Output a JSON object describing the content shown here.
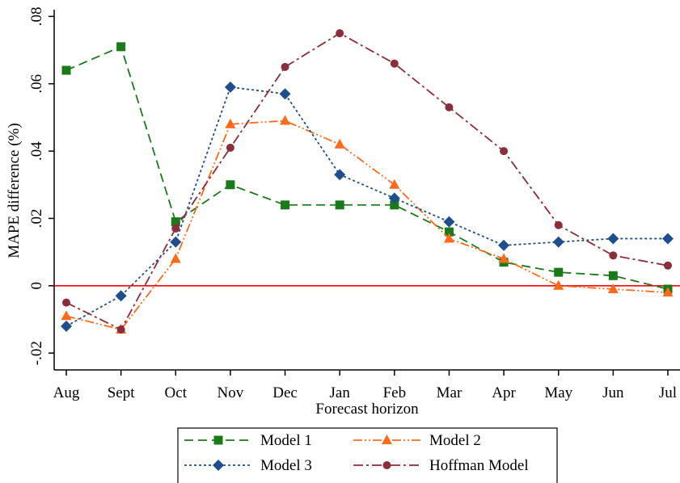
{
  "chart_data": {
    "type": "line",
    "xlabel": "Forecast horizon",
    "ylabel": "MAPE difference (%)",
    "categories": [
      "Aug",
      "Sept",
      "Oct",
      "Nov",
      "Dec",
      "Jan",
      "Feb",
      "Mar",
      "Apr",
      "May",
      "Jun",
      "Jul"
    ],
    "ylim": [
      -0.025,
      0.082
    ],
    "yticks": [
      -0.02,
      0,
      0.02,
      0.04,
      0.06,
      0.08
    ],
    "ytick_labels": [
      "-.02",
      "0",
      ".02",
      ".04",
      ".06",
      ".08"
    ],
    "reference_line": {
      "y": 0,
      "color": "#ff0000"
    },
    "grid": false,
    "legend_position": "bottom",
    "series": [
      {
        "name": "Model 1",
        "color": "#1a7a1a",
        "marker": "square",
        "dash": "dashed",
        "values": [
          0.064,
          0.071,
          0.019,
          0.03,
          0.024,
          0.024,
          0.024,
          0.016,
          0.007,
          0.004,
          0.003,
          -0.001
        ]
      },
      {
        "name": "Model 2",
        "color": "#ff6a1a",
        "marker": "triangle",
        "dash": "dash-dot-dot",
        "values": [
          -0.009,
          -0.013,
          0.008,
          0.048,
          0.049,
          0.042,
          0.03,
          0.014,
          0.008,
          0.0,
          -0.001,
          -0.002
        ]
      },
      {
        "name": "Model 3",
        "color": "#1f4e8c",
        "marker": "diamond",
        "dash": "dotted",
        "values": [
          -0.012,
          -0.003,
          0.013,
          0.059,
          0.057,
          0.033,
          0.026,
          0.019,
          0.012,
          0.013,
          0.014,
          0.014
        ]
      },
      {
        "name": "Hoffman Model",
        "color": "#8b2d3a",
        "marker": "circle",
        "dash": "dash-dot",
        "values": [
          -0.005,
          -0.013,
          0.017,
          0.041,
          0.065,
          0.075,
          0.066,
          0.053,
          0.04,
          0.018,
          0.009,
          0.006
        ]
      }
    ]
  }
}
